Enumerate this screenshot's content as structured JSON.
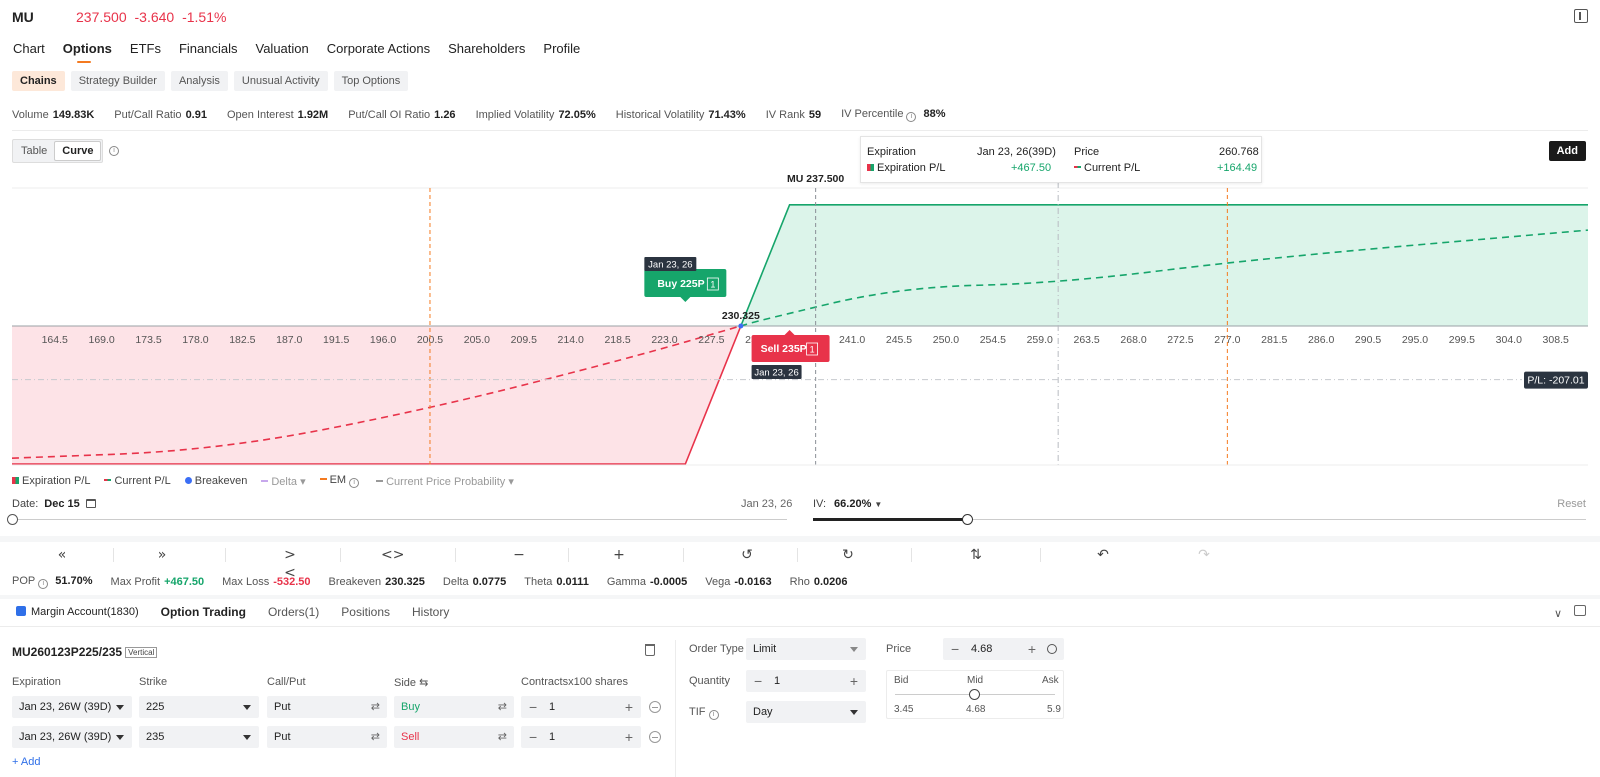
{
  "header": {
    "ticker": "MU",
    "quote": "237.500  -3.640  -1.51%"
  },
  "tabs": [
    "Chart",
    "Options",
    "ETFs",
    "Financials",
    "Valuation",
    "Corporate Actions",
    "Shareholders",
    "Profile"
  ],
  "active_tab": "Options",
  "subtabs": [
    "Chains",
    "Strategy Builder",
    "Analysis",
    "Unusual Activity",
    "Top Options"
  ],
  "active_subtab": "Chains",
  "stats": {
    "volume_label": "Volume",
    "volume": "149.83K",
    "pcr_label": "Put/Call Ratio",
    "pcr": "0.91",
    "oi_label": "Open Interest",
    "oi": "1.92M",
    "pcoi_label": "Put/Call OI Ratio",
    "pcoi": "1.26",
    "iv_label": "Implied Volatility",
    "iv": "72.05%",
    "hv_label": "Historical Volatility",
    "hv": "71.43%",
    "ivrank_label": "IV Rank",
    "ivrank": "59",
    "ivpct_label": "IV Percentile",
    "ivpct": "88%"
  },
  "view_toggle": {
    "table": "Table",
    "curve": "Curve"
  },
  "hover": {
    "expiration_label": "Expiration",
    "expiration_value": "Jan 23, 26(39D)",
    "exp_pl_label": "Expiration P/L",
    "exp_pl_value": "+467.50",
    "price_label": "Price",
    "price_value": "260.768",
    "cur_pl_label": "Current P/L",
    "cur_pl_value": "+164.49"
  },
  "add_button": "Add",
  "chart_data": {
    "type": "line",
    "x_ticks": [
      "164.5",
      "169.0",
      "173.5",
      "178.0",
      "182.5",
      "187.0",
      "191.5",
      "196.0",
      "200.5",
      "205.0",
      "209.5",
      "214.0",
      "218.5",
      "223.0",
      "227.5",
      "232.0",
      "236.5",
      "241.0",
      "245.5",
      "250.0",
      "254.5",
      "259.0",
      "263.5",
      "268.0",
      "272.5",
      "277.0",
      "281.5",
      "286.0",
      "290.5",
      "295.0",
      "299.5",
      "304.0",
      "308.5"
    ],
    "xlim": [
      160.4,
      311.6
    ],
    "ylim": [
      -600,
      600
    ],
    "series": [
      {
        "name": "Expiration P/L",
        "color": "#16a56b",
        "points": [
          [
            160.4,
            -532.5
          ],
          [
            225,
            -532.5
          ],
          [
            235,
            467.5
          ],
          [
            311.6,
            467.5
          ]
        ]
      },
      {
        "name": "Current P/L",
        "color": "#e8334a",
        "points": [
          [
            160.4,
            -510
          ],
          [
            180,
            -480
          ],
          [
            200.5,
            -320
          ],
          [
            220,
            -120
          ],
          [
            232.0,
            20
          ],
          [
            245.5,
            150
          ],
          [
            260.768,
            164.49
          ],
          [
            280,
            260
          ],
          [
            311.6,
            370
          ]
        ]
      }
    ],
    "breakeven": 230.325,
    "breakeven_label": "230.325",
    "spot": 237.5,
    "spot_label": "MU 237.500",
    "hover_x": 260.768,
    "em_lines": [
      200.5,
      277.0
    ],
    "pl_line": -207.01,
    "pl_label": "P/L: -207.01",
    "legs": [
      {
        "label": "Buy 225P",
        "qty": "1",
        "date": "Jan 23, 26",
        "color": "#16a56b"
      },
      {
        "label": "Sell 235P",
        "qty": "1",
        "date": "Jan 23, 26",
        "color": "#e8334a"
      }
    ]
  },
  "legend": [
    "Expiration P/L",
    "Current P/L",
    "Breakeven",
    "Delta",
    "EM",
    "Current Price Probability"
  ],
  "date_slider": {
    "label": "Date:",
    "value": "Dec 15",
    "end": "Jan 23, 26",
    "position": 0
  },
  "iv_slider": {
    "label": "IV:",
    "value": "66.20%",
    "reset": "Reset",
    "position": 0.2
  },
  "greeks": {
    "pop_label": "POP",
    "pop": "51.70%",
    "maxprofit_label": "Max Profit",
    "maxprofit": "+467.50",
    "maxloss_label": "Max Loss",
    "maxloss": "-532.50",
    "breakeven_label": "Breakeven",
    "breakeven": "230.325",
    "delta_label": "Delta",
    "delta": "0.0775",
    "theta_label": "Theta",
    "theta": "0.0111",
    "gamma_label": "Gamma",
    "gamma": "-0.0005",
    "vega_label": "Vega",
    "vega": "-0.0163",
    "rho_label": "Rho",
    "rho": "0.0206"
  },
  "account": {
    "name": "Margin Account(1830)",
    "tabs": [
      "Option Trading",
      "Orders(1)",
      "Positions",
      "History"
    ]
  },
  "order": {
    "symbol": "MU260123P225/235",
    "tag": "Vertical",
    "headers": {
      "expiration": "Expiration",
      "strike": "Strike",
      "callput": "Call/Put",
      "side": "Side ⇆",
      "contracts": "Contractsx100 shares"
    },
    "legs": [
      {
        "expiration": "Jan 23, 26W (39D)",
        "strike": "225",
        "callput": "Put",
        "side": "Buy",
        "qty": "1"
      },
      {
        "expiration": "Jan 23, 26W (39D)",
        "strike": "235",
        "callput": "Put",
        "side": "Sell",
        "qty": "1"
      }
    ],
    "add_leg": "+ Add",
    "order_type_label": "Order Type",
    "order_type": "Limit",
    "quantity_label": "Quantity",
    "quantity": "1",
    "tif_label": "TIF",
    "tif": "Day",
    "price_label": "Price",
    "price": "4.68",
    "bid_label": "Bid",
    "mid_label": "Mid",
    "ask_label": "Ask",
    "bid": "3.45",
    "mid": "4.68",
    "ask": "5.9"
  }
}
